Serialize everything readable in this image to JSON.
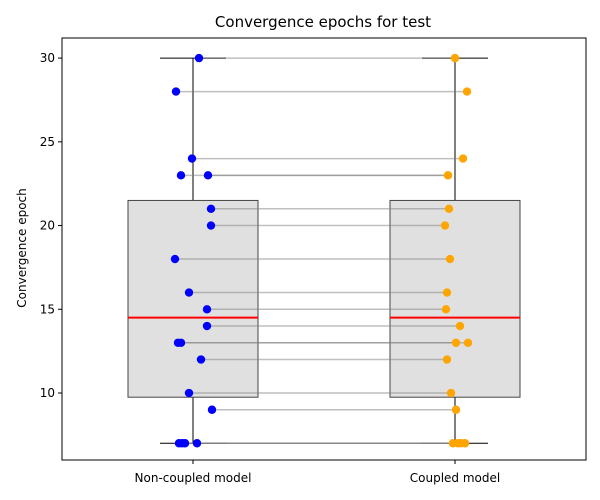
{
  "chart_data": {
    "type": "box",
    "title": "Convergence epochs for test",
    "xlabel": "",
    "ylabel": "Convergence epoch",
    "categories": [
      "Non-coupled model",
      "Coupled model"
    ],
    "ylim": [
      6,
      31.2
    ],
    "yticks": [
      10,
      15,
      20,
      25,
      30
    ],
    "grid": false,
    "boxes": [
      {
        "category": "Non-coupled model",
        "q1": 9.75,
        "median": 14.5,
        "q3": 21.5,
        "whisker_low": 7,
        "whisker_high": 30
      },
      {
        "category": "Coupled model",
        "q1": 9.75,
        "median": 14.5,
        "q3": 21.5,
        "whisker_low": 7,
        "whisker_high": 30
      }
    ],
    "series": [
      {
        "category": "Non-coupled model",
        "color": "#0000ff",
        "values": [
          30,
          28,
          24,
          23,
          23,
          21,
          20,
          18,
          16,
          15,
          14,
          13,
          13,
          12,
          10,
          9,
          7,
          7,
          7,
          7
        ]
      },
      {
        "category": "Coupled model",
        "color": "#ffa500",
        "values": [
          30,
          28,
          24,
          23,
          23,
          21,
          20,
          18,
          16,
          15,
          14,
          13,
          13,
          12,
          10,
          9,
          7,
          7,
          7,
          7
        ]
      }
    ],
    "jitter_left": [
      0.06,
      -0.17,
      -0.01,
      -0.12,
      0.15,
      0.18,
      0.18,
      -0.18,
      -0.04,
      0.14,
      0.14,
      -0.15,
      -0.12,
      0.08,
      -0.04,
      0.19,
      -0.14,
      -0.11,
      -0.08,
      0.04
    ],
    "jitter_right": [
      0.0,
      0.12,
      0.08,
      -0.07,
      -0.07,
      -0.06,
      -0.1,
      -0.05,
      -0.08,
      -0.09,
      0.05,
      0.01,
      0.13,
      -0.08,
      -0.04,
      0.01,
      -0.02,
      0.03,
      0.06,
      0.1
    ],
    "colors": {
      "box_fill": "#e0e0e0",
      "box_edge": "#444444",
      "median": "#ff0000",
      "whisker": "#000000",
      "pair_line": "#808080",
      "left_points": "#0000ff",
      "right_points": "#ffa500"
    }
  }
}
